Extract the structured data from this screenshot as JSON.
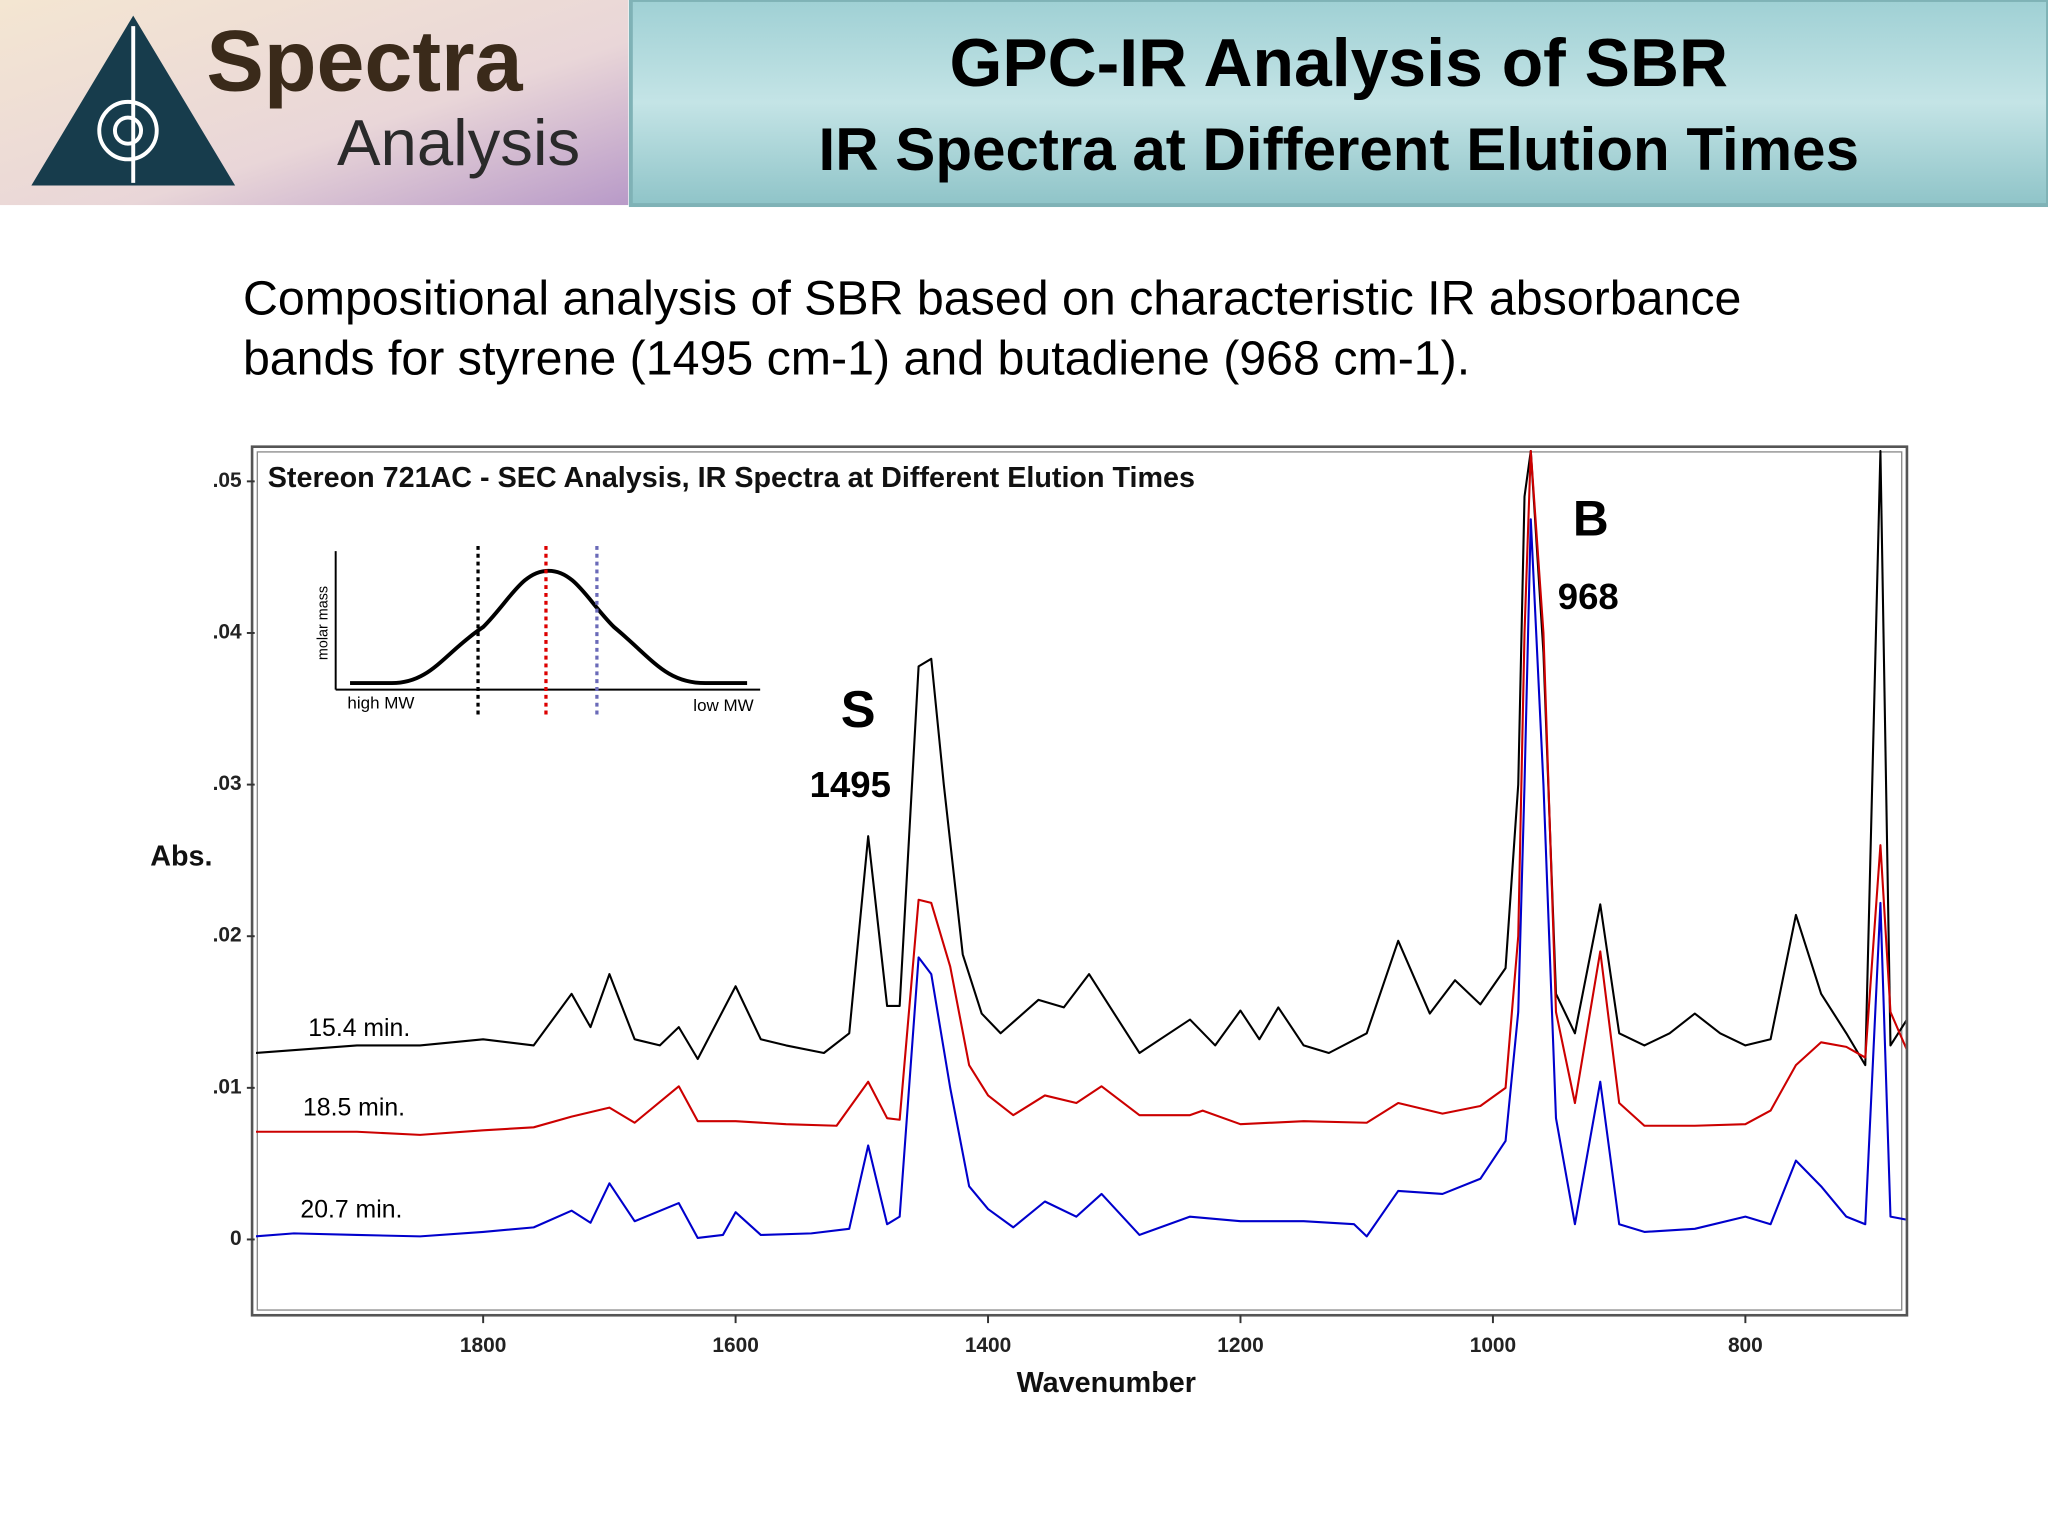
{
  "header": {
    "logo_line1": "Spectra",
    "logo_line2": "Analysis",
    "title": "GPC-IR Analysis of SBR",
    "subtitle": "IR Spectra at Different Elution Times"
  },
  "description": {
    "line1": "Compositional analysis of SBR based on characteristic IR absorbance",
    "line2": "bands for styrene (1495 cm-1) and butadiene (968 cm-1)."
  },
  "chart_data": {
    "type": "line",
    "title": "Stereon 721AC - SEC Analysis, IR Spectra at Different Elution Times",
    "x_label": "Wavenumber",
    "y_label": "Abs.",
    "xlim": [
      1981,
      672
    ],
    "ylim": [
      -0.005,
      0.0522
    ],
    "xticks": [
      1800,
      1600,
      1400,
      1200,
      1000,
      800
    ],
    "yticks": [
      {
        "value": 0.05,
        "label": ".05"
      },
      {
        "value": 0.04,
        "label": ".04"
      },
      {
        "value": 0.03,
        "label": ".03"
      },
      {
        "value": 0.02,
        "label": ".02"
      },
      {
        "value": 0.01,
        "label": ".01"
      },
      0
    ],
    "grid": false,
    "annotations": [
      "S",
      "1495",
      "B",
      "968"
    ],
    "inset": {
      "y_label": "molar mass",
      "left_label": "high MW",
      "right_label": "low MW"
    },
    "series": [
      {
        "name": "15.4 min.",
        "color": "#000000",
        "x": [
          1981,
          1900,
          1850,
          1800,
          1760,
          1730,
          1715,
          1700,
          1680,
          1660,
          1645,
          1630,
          1600,
          1580,
          1560,
          1530,
          1510,
          1495,
          1480,
          1470,
          1455,
          1445,
          1435,
          1420,
          1405,
          1390,
          1360,
          1340,
          1320,
          1300,
          1280,
          1240,
          1220,
          1200,
          1185,
          1170,
          1150,
          1130,
          1100,
          1075,
          1050,
          1030,
          1010,
          990,
          980,
          975,
          970,
          960,
          950,
          935,
          915,
          900,
          880,
          860,
          840,
          820,
          800,
          780,
          760,
          740,
          720,
          705,
          693,
          685,
          672
        ],
        "values": [
          0.0123,
          0.0128,
          0.0128,
          0.0132,
          0.0128,
          0.0162,
          0.014,
          0.0175,
          0.0132,
          0.0128,
          0.014,
          0.0119,
          0.0167,
          0.0132,
          0.0128,
          0.0123,
          0.0136,
          0.0266,
          0.0154,
          0.0154,
          0.0378,
          0.0383,
          0.03,
          0.0188,
          0.0149,
          0.0136,
          0.0158,
          0.0153,
          0.0175,
          0.0149,
          0.0123,
          0.0145,
          0.0128,
          0.0151,
          0.0132,
          0.0153,
          0.0128,
          0.0123,
          0.0136,
          0.0197,
          0.0149,
          0.0171,
          0.0155,
          0.0179,
          0.03,
          0.049,
          0.052,
          0.0387,
          0.0162,
          0.0136,
          0.0221,
          0.0136,
          0.0128,
          0.0136,
          0.0149,
          0.0136,
          0.0128,
          0.0132,
          0.0214,
          0.0162,
          0.0136,
          0.0115,
          0.052,
          0.0128,
          0.0145
        ]
      },
      {
        "name": "18.5 min.",
        "color": "#cc0000",
        "x": [
          1981,
          1900,
          1850,
          1800,
          1760,
          1730,
          1700,
          1680,
          1645,
          1630,
          1600,
          1560,
          1520,
          1495,
          1480,
          1470,
          1455,
          1445,
          1430,
          1415,
          1400,
          1380,
          1355,
          1330,
          1310,
          1280,
          1240,
          1230,
          1200,
          1150,
          1100,
          1075,
          1040,
          1010,
          990,
          980,
          975,
          970,
          960,
          950,
          935,
          915,
          900,
          880,
          840,
          800,
          780,
          760,
          740,
          720,
          705,
          693,
          685,
          672
        ],
        "values": [
          0.0071,
          0.0071,
          0.0069,
          0.0072,
          0.0074,
          0.0081,
          0.0087,
          0.0077,
          0.0101,
          0.0078,
          0.0078,
          0.0076,
          0.0075,
          0.0104,
          0.008,
          0.0079,
          0.0224,
          0.0222,
          0.018,
          0.0115,
          0.0095,
          0.0082,
          0.0095,
          0.009,
          0.0101,
          0.0082,
          0.0082,
          0.0085,
          0.0076,
          0.0078,
          0.0077,
          0.009,
          0.0083,
          0.0088,
          0.01,
          0.02,
          0.04,
          0.052,
          0.04,
          0.015,
          0.009,
          0.019,
          0.009,
          0.0075,
          0.0075,
          0.0076,
          0.0085,
          0.0115,
          0.013,
          0.0127,
          0.012,
          0.026,
          0.015,
          0.0125
        ]
      },
      {
        "name": "20.7 min.",
        "color": "#0000cc",
        "x": [
          1981,
          1950,
          1900,
          1850,
          1800,
          1760,
          1730,
          1715,
          1700,
          1680,
          1645,
          1630,
          1610,
          1600,
          1580,
          1540,
          1510,
          1495,
          1480,
          1470,
          1455,
          1445,
          1430,
          1415,
          1400,
          1380,
          1355,
          1330,
          1310,
          1280,
          1240,
          1200,
          1150,
          1110,
          1100,
          1075,
          1040,
          1010,
          990,
          980,
          975,
          970,
          960,
          950,
          935,
          915,
          900,
          880,
          840,
          800,
          780,
          760,
          740,
          720,
          705,
          693,
          685,
          672
        ],
        "values": [
          0.0002,
          0.0004,
          0.0003,
          0.0002,
          0.0005,
          0.0008,
          0.0019,
          0.0011,
          0.0037,
          0.0012,
          0.0024,
          0.0001,
          0.0003,
          0.0018,
          0.0003,
          0.0004,
          0.0007,
          0.0062,
          0.001,
          0.0015,
          0.0186,
          0.0175,
          0.01,
          0.0035,
          0.002,
          0.0008,
          0.0025,
          0.0015,
          0.003,
          0.0003,
          0.0015,
          0.0012,
          0.0012,
          0.001,
          0.0002,
          0.0032,
          0.003,
          0.004,
          0.0065,
          0.015,
          0.03,
          0.0475,
          0.03,
          0.008,
          0.001,
          0.0104,
          0.001,
          0.0005,
          0.0007,
          0.0015,
          0.001,
          0.0052,
          0.0035,
          0.0015,
          0.001,
          0.0222,
          0.0015,
          0.0013
        ]
      }
    ]
  }
}
